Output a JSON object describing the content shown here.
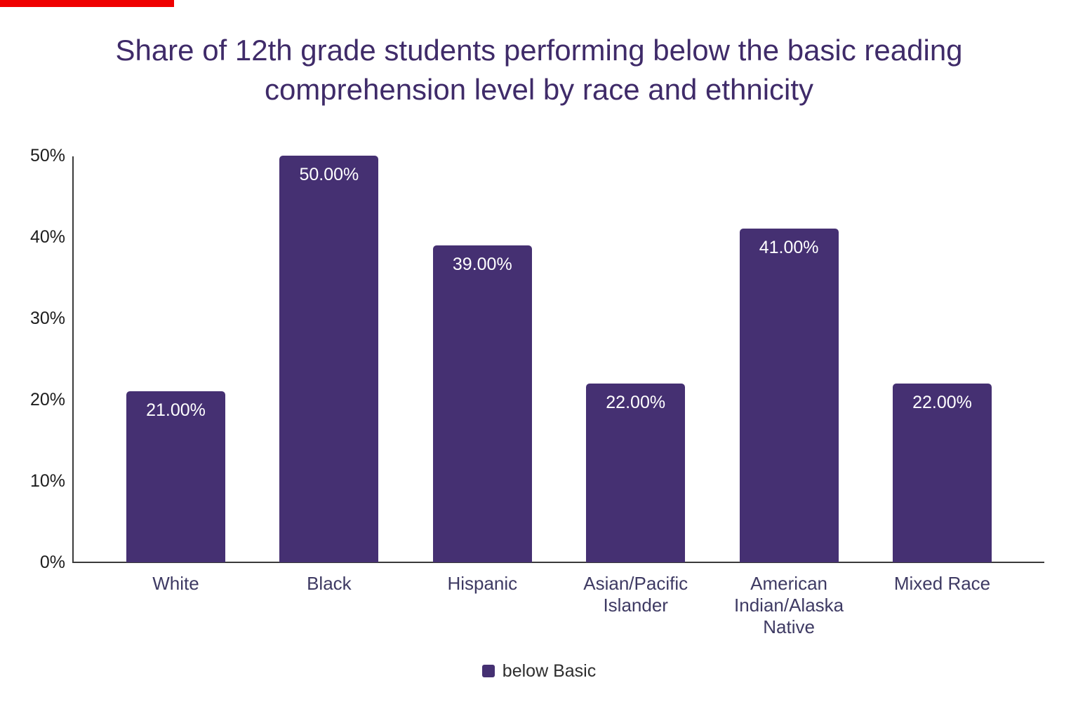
{
  "top_strip": {
    "color": "#ef0000"
  },
  "colors": {
    "bar": "#453072",
    "title_text": "#3f2b69",
    "category_label": "#3e3a63",
    "tick_label": "#1d1d1d",
    "value_label": "#ffffff",
    "axis_line": "#3a3a3a",
    "legend_text": "#2e2e2e"
  },
  "chart_data": {
    "type": "bar",
    "title": "Share of 12th grade students performing below the basic reading comprehension level by race and ethnicity",
    "categories": [
      "White",
      "Black",
      "Hispanic",
      "Asian/Pacific Islander",
      "American Indian/Alaska Native",
      "Mixed Race"
    ],
    "series": [
      {
        "name": "below Basic",
        "values": [
          21,
          50,
          39,
          22,
          41,
          22
        ]
      }
    ],
    "value_labels": [
      "21.00%",
      "50.00%",
      "39.00%",
      "22.00%",
      "41.00%",
      "22.00%"
    ],
    "xlabel": "",
    "ylabel": "",
    "y_ticks": [
      "0%",
      "10%",
      "20%",
      "30%",
      "40%",
      "50%"
    ],
    "ylim": [
      0,
      50
    ],
    "grid": false,
    "legend_position": "bottom"
  }
}
